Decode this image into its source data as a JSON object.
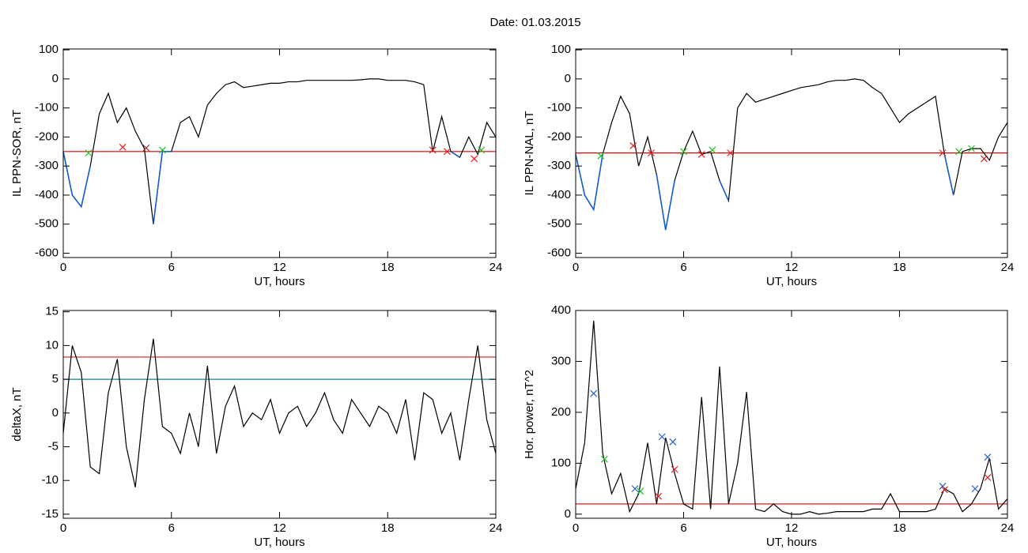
{
  "title": "Date:  01.03.2015",
  "chart_data": [
    {
      "type": "line",
      "xlabel": "UT, hours",
      "ylabel": "IL PPN-SOR, nT",
      "xlim": [
        0,
        24
      ],
      "xticks": [
        0,
        6,
        12,
        18,
        24
      ],
      "ylim": [
        -615,
        103
      ],
      "yticks": [
        -600,
        -500,
        -400,
        -300,
        -200,
        -100,
        0,
        100
      ],
      "highlight_below": -250,
      "highlight_color": "#1560d0",
      "series": [
        {
          "color": "#000000",
          "x": [
            0,
            0.5,
            1,
            1.5,
            2,
            2.5,
            3,
            3.5,
            4,
            4.5,
            5,
            5.5,
            6,
            6.5,
            7,
            7.5,
            8,
            8.5,
            9,
            9.5,
            10,
            10.5,
            11,
            11.5,
            12,
            12.5,
            13,
            13.5,
            14,
            14.5,
            15,
            15.5,
            16,
            16.5,
            17,
            17.5,
            18,
            18.5,
            19,
            19.5,
            20,
            20.5,
            21,
            21.5,
            22,
            22.5,
            23,
            23.5,
            24
          ],
          "values": [
            -250,
            -400,
            -440,
            -300,
            -120,
            -50,
            -150,
            -100,
            -180,
            -240,
            -500,
            -250,
            -250,
            -150,
            -130,
            -200,
            -90,
            -50,
            -20,
            -10,
            -30,
            -25,
            -20,
            -15,
            -15,
            -10,
            -10,
            -5,
            -5,
            -5,
            -5,
            -5,
            -5,
            -3,
            0,
            0,
            -5,
            -5,
            -5,
            -10,
            -20,
            -250,
            -130,
            -250,
            -270,
            -200,
            -260,
            -150,
            -200
          ]
        }
      ],
      "hlines": [
        {
          "value": -250,
          "color": "#e00000"
        }
      ],
      "markers": [
        {
          "x": 1.4,
          "y": -255,
          "color": "#20c020"
        },
        {
          "x": 3.3,
          "y": -235,
          "color": "#e02020"
        },
        {
          "x": 4.6,
          "y": -238,
          "color": "#902020"
        },
        {
          "x": 5.5,
          "y": -245,
          "color": "#20c020"
        },
        {
          "x": 20.5,
          "y": -245,
          "color": "#e02020"
        },
        {
          "x": 21.3,
          "y": -250,
          "color": "#e02020"
        },
        {
          "x": 22.8,
          "y": -275,
          "color": "#e02020"
        },
        {
          "x": 23.2,
          "y": -245,
          "color": "#20c020"
        }
      ]
    },
    {
      "type": "line",
      "xlabel": "UT, hours",
      "ylabel": "IL PPN-NAL, nT",
      "xlim": [
        0,
        24
      ],
      "xticks": [
        0,
        6,
        12,
        18,
        24
      ],
      "ylim": [
        -615,
        103
      ],
      "yticks": [
        -600,
        -500,
        -400,
        -300,
        -200,
        -100,
        0,
        100
      ],
      "highlight_below": -255,
      "highlight_color": "#1560d0",
      "series": [
        {
          "color": "#000000",
          "x": [
            0,
            0.5,
            1,
            1.5,
            2,
            2.5,
            3,
            3.5,
            4,
            4.5,
            5,
            5.5,
            6,
            6.5,
            7,
            7.5,
            8,
            8.5,
            9,
            9.5,
            10,
            10.5,
            11,
            11.5,
            12,
            12.5,
            13,
            13.5,
            14,
            14.5,
            15,
            15.5,
            16,
            16.5,
            17,
            17.5,
            18,
            18.5,
            19,
            19.5,
            20,
            20.5,
            21,
            21.5,
            22,
            22.5,
            23,
            23.5,
            24
          ],
          "values": [
            -260,
            -400,
            -450,
            -260,
            -150,
            -60,
            -120,
            -300,
            -200,
            -330,
            -520,
            -350,
            -250,
            -180,
            -260,
            -250,
            -350,
            -420,
            -100,
            -50,
            -80,
            -70,
            -60,
            -50,
            -40,
            -30,
            -25,
            -20,
            -10,
            -5,
            -5,
            0,
            -5,
            -30,
            -50,
            -100,
            -150,
            -120,
            -100,
            -80,
            -60,
            -260,
            -400,
            -250,
            -240,
            -240,
            -280,
            -200,
            -150
          ]
        }
      ],
      "hlines": [
        {
          "value": -255,
          "color": "#e00000"
        }
      ],
      "markers": [
        {
          "x": 1.4,
          "y": -265,
          "color": "#20c020"
        },
        {
          "x": 3.2,
          "y": -230,
          "color": "#e02020"
        },
        {
          "x": 4.2,
          "y": -255,
          "color": "#e02020"
        },
        {
          "x": 6,
          "y": -250,
          "color": "#20c020"
        },
        {
          "x": 7,
          "y": -260,
          "color": "#e02020"
        },
        {
          "x": 7.6,
          "y": -245,
          "color": "#20c020"
        },
        {
          "x": 8.6,
          "y": -255,
          "color": "#e02020"
        },
        {
          "x": 20.4,
          "y": -255,
          "color": "#e02020"
        },
        {
          "x": 21.3,
          "y": -250,
          "color": "#20c020"
        },
        {
          "x": 22.0,
          "y": -240,
          "color": "#20c020"
        },
        {
          "x": 22.7,
          "y": -275,
          "color": "#e02020"
        }
      ]
    },
    {
      "type": "line",
      "xlabel": "UT, hours",
      "ylabel": "deltaX, nT",
      "xlim": [
        0,
        24
      ],
      "xticks": [
        0,
        6,
        12,
        18,
        24
      ],
      "ylim": [
        -15.6,
        15.2
      ],
      "yticks": [
        -15,
        -10,
        -5,
        0,
        5,
        10,
        15
      ],
      "series": [
        {
          "color": "#000000",
          "x": [
            0,
            0.5,
            1,
            1.5,
            2,
            2.5,
            3,
            3.5,
            4,
            4.5,
            5,
            5.5,
            6,
            6.5,
            7,
            7.5,
            8,
            8.5,
            9,
            9.5,
            10,
            10.5,
            11,
            11.5,
            12,
            12.5,
            13,
            13.5,
            14,
            14.5,
            15,
            15.5,
            16,
            16.5,
            17,
            17.5,
            18,
            18.5,
            19,
            19.5,
            20,
            20.5,
            21,
            21.5,
            22,
            22.5,
            23,
            23.5,
            24
          ],
          "values": [
            -3,
            10,
            6,
            -8,
            -9,
            3,
            8,
            -5,
            -11,
            2,
            11,
            -2,
            -3,
            -6,
            0,
            -5,
            7,
            -6,
            1,
            4,
            -2,
            0,
            -1,
            2,
            -3,
            0,
            1,
            -2,
            0,
            3,
            -1,
            -3,
            2,
            0,
            -2,
            1,
            0,
            -3,
            2,
            -7,
            3,
            2,
            -3,
            0,
            -7,
            2,
            10,
            -1,
            -6
          ]
        }
      ],
      "hlines": [
        {
          "value": 8.3,
          "color": "#d02020"
        },
        {
          "value": 5,
          "color": "#108090"
        }
      ],
      "markers": []
    },
    {
      "type": "line",
      "xlabel": "UT, hours",
      "ylabel": "Hor. power, nT^2",
      "xlim": [
        0,
        24
      ],
      "xticks": [
        0,
        6,
        12,
        18,
        24
      ],
      "ylim": [
        -8,
        400
      ],
      "yticks": [
        0,
        100,
        200,
        300,
        400
      ],
      "series": [
        {
          "color": "#000000",
          "x": [
            0,
            0.5,
            1,
            1.5,
            2,
            2.5,
            3,
            3.5,
            4,
            4.5,
            5,
            5.5,
            6,
            6.5,
            7,
            7.5,
            8,
            8.5,
            9,
            9.5,
            10,
            10.5,
            11,
            11.5,
            12,
            12.5,
            13,
            13.5,
            14,
            14.5,
            15,
            15.5,
            16,
            16.5,
            17,
            17.5,
            18,
            18.5,
            19,
            19.5,
            20,
            20.5,
            21,
            21.5,
            22,
            22.5,
            23,
            23.5,
            24
          ],
          "values": [
            50,
            140,
            380,
            120,
            40,
            80,
            5,
            40,
            140,
            20,
            150,
            80,
            20,
            10,
            230,
            10,
            290,
            20,
            100,
            240,
            10,
            5,
            20,
            5,
            0,
            0,
            5,
            0,
            2,
            5,
            5,
            5,
            5,
            10,
            10,
            40,
            5,
            5,
            5,
            5,
            10,
            50,
            40,
            5,
            20,
            50,
            110,
            10,
            30
          ]
        }
      ],
      "hlines": [
        {
          "value": 20,
          "color": "#e00000"
        }
      ],
      "markers": [
        {
          "x": 1,
          "y": 237,
          "color": "#2060d0"
        },
        {
          "x": 1.6,
          "y": 108,
          "color": "#20c020"
        },
        {
          "x": 3.3,
          "y": 50,
          "color": "#2060d0"
        },
        {
          "x": 3.6,
          "y": 45,
          "color": "#20c020"
        },
        {
          "x": 4.6,
          "y": 35,
          "color": "#e02020"
        },
        {
          "x": 4.8,
          "y": 152,
          "color": "#2060d0"
        },
        {
          "x": 5.4,
          "y": 142,
          "color": "#2060d0"
        },
        {
          "x": 5.5,
          "y": 88,
          "color": "#e02020"
        },
        {
          "x": 20.4,
          "y": 55,
          "color": "#2060d0"
        },
        {
          "x": 20.5,
          "y": 48,
          "color": "#e02020"
        },
        {
          "x": 22.2,
          "y": 50,
          "color": "#2060d0"
        },
        {
          "x": 22.9,
          "y": 112,
          "color": "#2060d0"
        },
        {
          "x": 22.9,
          "y": 72,
          "color": "#e02020"
        }
      ]
    }
  ]
}
